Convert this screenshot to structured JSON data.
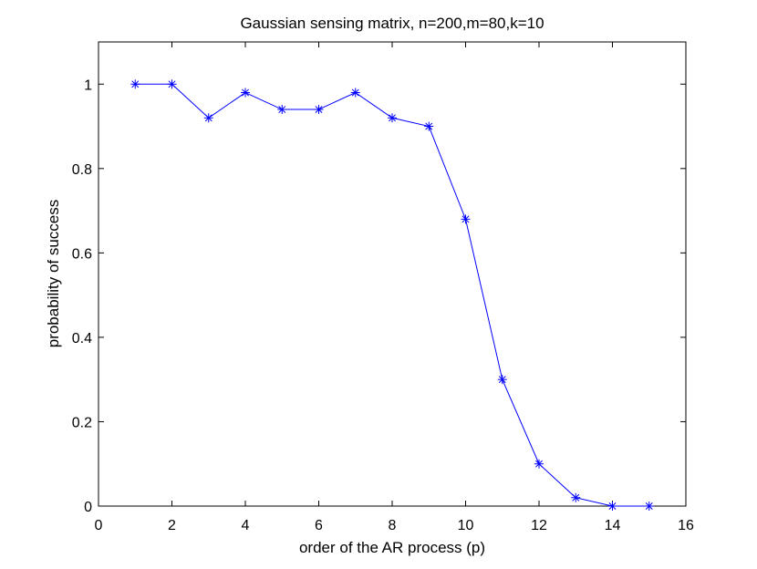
{
  "chart_data": {
    "type": "line",
    "title": "Gaussian sensing matrix, n=200,m=80,k=10",
    "xlabel": "order of the AR process (p)",
    "ylabel": "probability of success",
    "xlim": [
      0,
      16
    ],
    "ylim": [
      0,
      1.1
    ],
    "xticks": [
      0,
      2,
      4,
      6,
      8,
      10,
      12,
      14,
      16
    ],
    "yticks": [
      0,
      0.2,
      0.4,
      0.6,
      0.8,
      1
    ],
    "xtick_labels": [
      "0",
      "2",
      "4",
      "6",
      "8",
      "10",
      "12",
      "14",
      "16"
    ],
    "ytick_labels": [
      "0",
      "0.2",
      "0.4",
      "0.6",
      "0.8",
      "1"
    ],
    "grid": false,
    "series": [
      {
        "color": "#0000ff",
        "marker": "asterisk",
        "x": [
          1,
          2,
          3,
          4,
          5,
          6,
          7,
          8,
          9,
          10,
          11,
          12,
          13,
          14,
          15
        ],
        "y": [
          1.0,
          1.0,
          0.92,
          0.98,
          0.94,
          0.94,
          0.98,
          0.92,
          0.9,
          0.68,
          0.3,
          0.1,
          0.02,
          0.0,
          0.0
        ]
      }
    ]
  }
}
